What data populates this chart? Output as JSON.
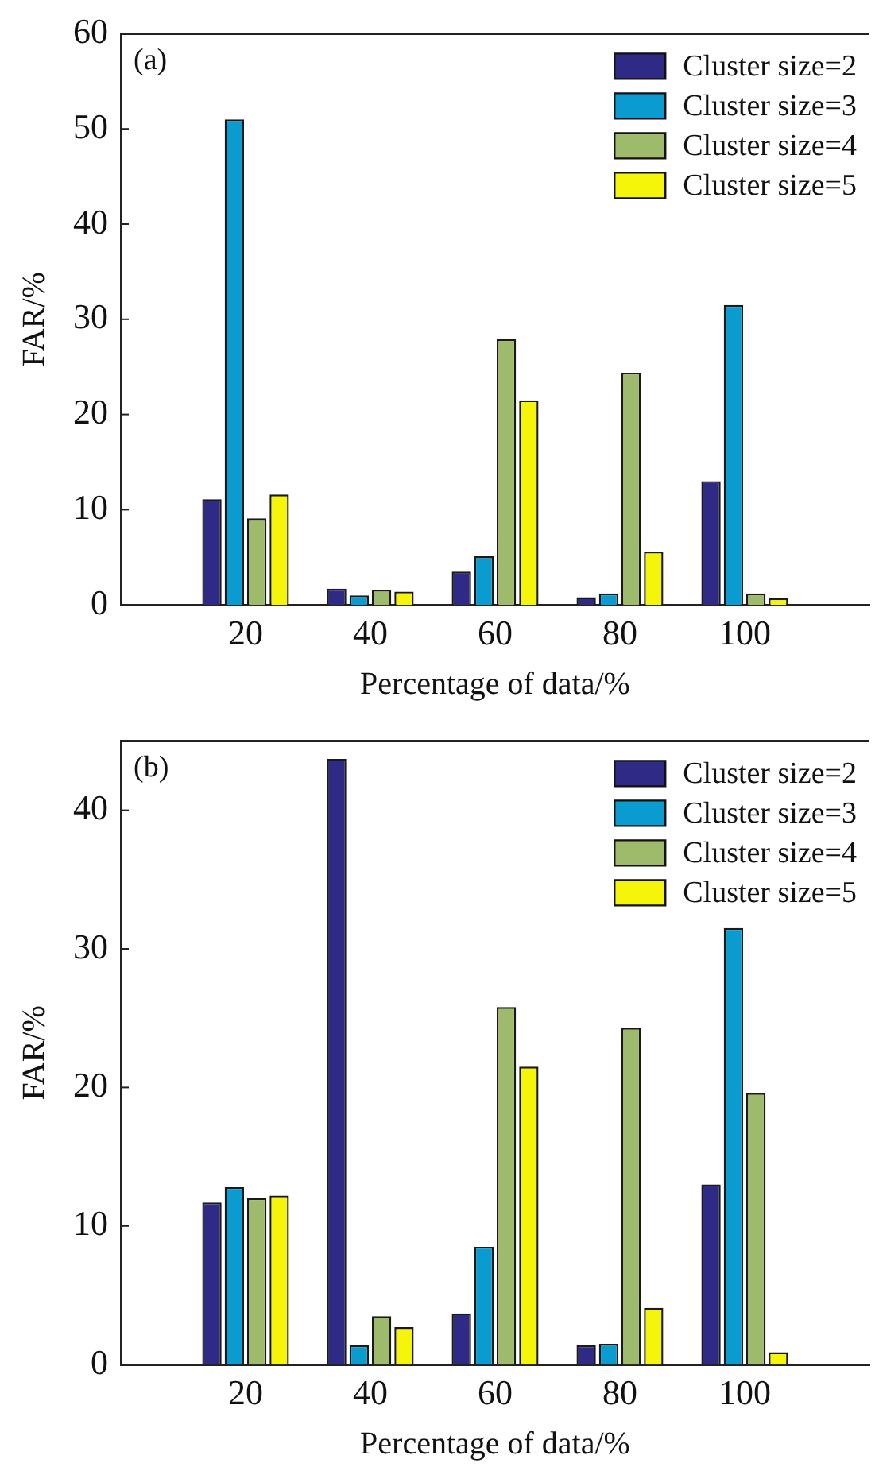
{
  "chart_data": [
    {
      "type": "bar",
      "categories": [
        null,
        "20",
        "40",
        "60",
        "80",
        "100",
        null
      ],
      "xlabel": "Percentage of data/%",
      "ylabel": "FAR/%",
      "ylim": [
        0,
        60
      ],
      "yticks": [
        0,
        10,
        20,
        30,
        40,
        50,
        60
      ],
      "legend": "top right",
      "grid": false,
      "annotations": [
        "(a)"
      ],
      "series": [
        {
          "name": "Cluster size=2",
          "color": "#2e2a85",
          "values": [
            null,
            11.1,
            1.7,
            3.5,
            0.8,
            13.0,
            null
          ]
        },
        {
          "name": "Cluster size=3",
          "color": "#0a9bd0",
          "values": [
            null,
            51.0,
            1.0,
            5.1,
            1.2,
            31.5,
            null
          ]
        },
        {
          "name": "Cluster size=4",
          "color": "#9dbb6a",
          "values": [
            null,
            9.1,
            1.6,
            27.9,
            24.4,
            1.2,
            null
          ]
        },
        {
          "name": "Cluster size=5",
          "color": "#f5f50a",
          "values": [
            null,
            11.6,
            1.4,
            21.5,
            5.6,
            0.7,
            null
          ]
        }
      ]
    },
    {
      "type": "bar",
      "categories": [
        null,
        "20",
        "40",
        "60",
        "80",
        "100",
        null
      ],
      "xlabel": "Percentage of data/%",
      "ylabel": "FAR/%",
      "ylim": [
        0,
        45
      ],
      "yticks": [
        0,
        10,
        20,
        30,
        40
      ],
      "legend": "top right",
      "grid": false,
      "annotations": [
        "(b)"
      ],
      "series": [
        {
          "name": "Cluster size=2",
          "color": "#2e2a85",
          "values": [
            null,
            11.7,
            43.7,
            3.7,
            1.4,
            13.0,
            null
          ]
        },
        {
          "name": "Cluster size=3",
          "color": "#0a9bd0",
          "values": [
            null,
            12.8,
            1.4,
            8.5,
            1.5,
            31.5,
            null
          ]
        },
        {
          "name": "Cluster size=4",
          "color": "#9dbb6a",
          "values": [
            null,
            12.0,
            3.5,
            25.8,
            24.3,
            19.6,
            null
          ]
        },
        {
          "name": "Cluster size=5",
          "color": "#f5f50a",
          "values": [
            null,
            12.2,
            2.7,
            21.5,
            4.1,
            0.9,
            null
          ]
        }
      ]
    }
  ]
}
